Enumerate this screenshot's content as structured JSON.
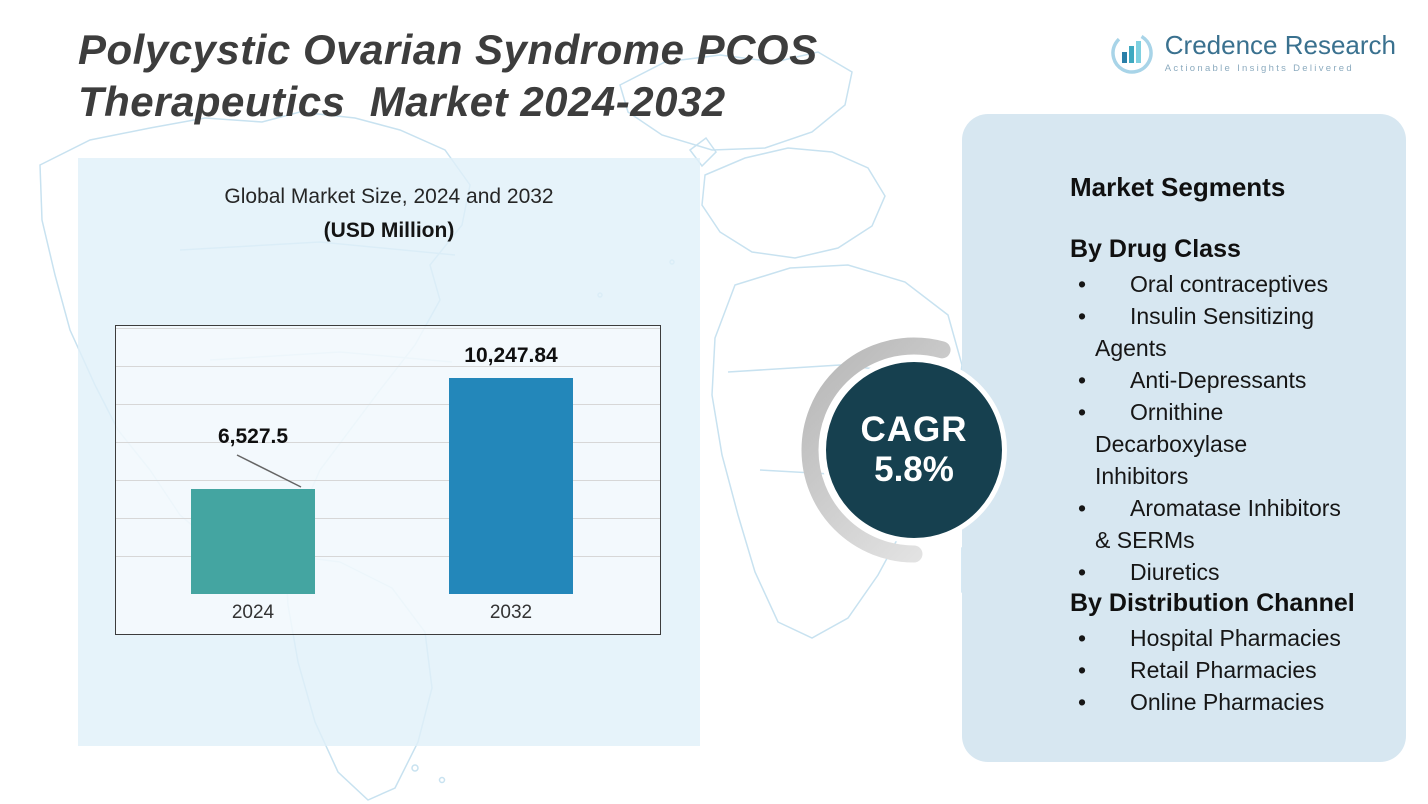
{
  "header": {
    "title_line1": "Polycystic Ovarian Syndrome PCOS",
    "title_line2": "Therapeutics  Market 2024-2032",
    "logo": {
      "brand": "Credence Research",
      "tagline": "Actionable Insights Delivered",
      "icon": "bar-chart-circle-icon"
    }
  },
  "chart_data": {
    "type": "bar",
    "title": "Global Market Size, 2024 and 2032",
    "subtitle": "(USD Million)",
    "categories": [
      "2024",
      "2032"
    ],
    "values": [
      6527.5,
      10247.84
    ],
    "value_labels": [
      "6,527.5",
      "10,247.84"
    ],
    "bar_colors": [
      "#44a5a1",
      "#2387ba"
    ],
    "ylim": [
      3000,
      12000
    ],
    "grid": true,
    "legend_position": "none"
  },
  "cagr_badge": {
    "label": "CAGR",
    "value": "5.8%",
    "bg_color": "#16404f"
  },
  "segments_panel": {
    "title": "Market Segments",
    "bg_color": "#d7e7f1",
    "groups": [
      {
        "heading": "By Drug Class",
        "items": [
          "Oral contraceptives",
          "Insulin Sensitizing\nAgents",
          "Anti-Depressants",
          "Ornithine\nDecarboxylase\nInhibitors",
          "Aromatase Inhibitors\n& SERMs",
          "Diuretics"
        ]
      },
      {
        "heading": "By Distribution Channel",
        "items": [
          "Hospital Pharmacies",
          "Retail Pharmacies",
          "Online Pharmacies"
        ]
      }
    ]
  }
}
